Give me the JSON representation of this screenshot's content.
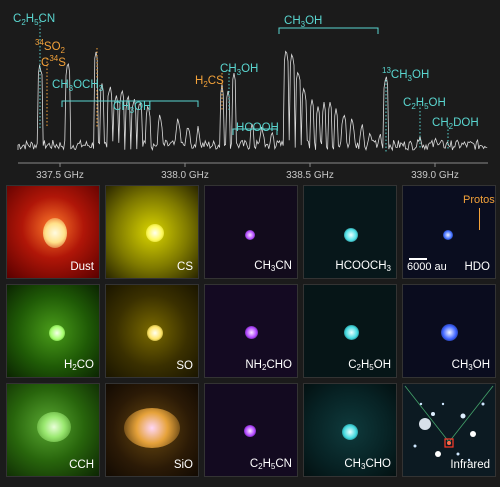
{
  "spectrum": {
    "freq_ticks": [
      "337.5 GHz",
      "338.0 GHz",
      "338.5 GHz",
      "339.0 GHz"
    ],
    "lines": [
      {
        "label": "C2H5CN",
        "color": "#5ad6d0"
      },
      {
        "label": "C34S",
        "color": "#f3a23a"
      },
      {
        "label": "34SO2",
        "color": "#f3a23a"
      },
      {
        "label": "CH3OCH3",
        "color": "#5ad6d0"
      },
      {
        "label": "CH3OH",
        "color": "#5ad6d0"
      },
      {
        "label": "H2CS",
        "color": "#f3a23a"
      },
      {
        "label": "CH3OH",
        "color": "#5ad6d0"
      },
      {
        "label": "HCOOH",
        "color": "#5ad6d0"
      },
      {
        "label": "CH3OH",
        "color": "#5ad6d0"
      },
      {
        "label": "13CH3OH",
        "color": "#5ad6d0"
      },
      {
        "label": "C2H5OH",
        "color": "#5ad6d0"
      },
      {
        "label": "CH2DOH",
        "color": "#5ad6d0"
      }
    ]
  },
  "panels": [
    {
      "label": "Dust"
    },
    {
      "label": "CS"
    },
    {
      "label": "CH3CN"
    },
    {
      "label": "HCOOCH3"
    },
    {
      "label": "HDO"
    },
    {
      "label": "H2CO"
    },
    {
      "label": "SO"
    },
    {
      "label": "NH2CHO"
    },
    {
      "label": "C2H5OH"
    },
    {
      "label": "CH3OH"
    },
    {
      "label": "CCH"
    },
    {
      "label": "SiO"
    },
    {
      "label": "C2H5CN"
    },
    {
      "label": "CH3CHO"
    },
    {
      "label": "Infrared"
    }
  ],
  "annotations": {
    "protostar": "Protostar",
    "scale": "6000 au"
  },
  "colors": {
    "cyan": "#5ad6d0",
    "orange": "#f3a23a",
    "spectrum_line": "#dcdcdc"
  }
}
